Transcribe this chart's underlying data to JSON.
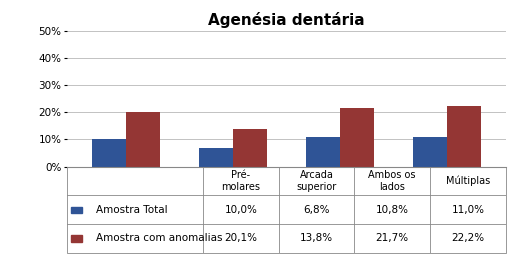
{
  "title": "Agenésia dentária",
  "categories": [
    "Pré-\nmolares",
    "Arcada\nsuperior",
    "Ambos os\nlados",
    "Múltiplas"
  ],
  "series": [
    {
      "name": "Amostra Total",
      "values": [
        0.1,
        0.068,
        0.108,
        0.11
      ],
      "color": "#2F5496"
    },
    {
      "name": "Amostra com anomalias",
      "values": [
        0.201,
        0.138,
        0.217,
        0.222
      ],
      "color": "#943634"
    }
  ],
  "table_header": [
    "Pré-\nmolares",
    "Arcada\nsuperior",
    "Ambos os\nlados",
    "Múltiplas"
  ],
  "table_row1_label": "Amostra Total",
  "table_row2_label": "Amostra com anomalias",
  "table_row1": [
    "10,0%",
    "6,8%",
    "10,8%",
    "11,0%"
  ],
  "table_row2": [
    "20,1%",
    "13,8%",
    "21,7%",
    "22,2%"
  ],
  "ylim": [
    0,
    0.5
  ],
  "yticks": [
    0.0,
    0.1,
    0.2,
    0.3,
    0.4,
    0.5
  ],
  "ytick_labels": [
    "0%",
    "10%",
    "20%",
    "30%",
    "40%",
    "50%"
  ],
  "background_color": "#ffffff",
  "bar_width": 0.32,
  "title_fontsize": 11,
  "tick_fontsize": 7.5,
  "table_fontsize": 7.5,
  "grid_color": "#aaaaaa"
}
